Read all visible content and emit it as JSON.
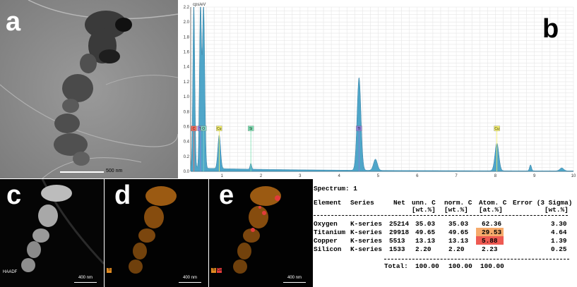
{
  "panels": {
    "a": {
      "label": "a",
      "scale_text": "500 nm"
    },
    "b": {
      "label": "b"
    },
    "c": {
      "label": "c",
      "scale_text": "400 nm",
      "tag": "HAADF"
    },
    "d": {
      "label": "d",
      "scale_text": "400 nm",
      "legend": [
        "Ti"
      ]
    },
    "e": {
      "label": "e",
      "scale_text": "400 nm",
      "legend": [
        "Ti",
        "Cu"
      ]
    }
  },
  "chart_data": {
    "type": "line",
    "ylabel": "cps/eV",
    "xlabel": "keV",
    "xlim": [
      0.2,
      10
    ],
    "ylim": [
      0,
      2.2
    ],
    "xticks": [
      1,
      2,
      3,
      4,
      5,
      6,
      7,
      8,
      9,
      10
    ],
    "yticks": [
      0.0,
      0.2,
      0.4,
      0.6,
      0.8,
      1.0,
      1.2,
      1.4,
      1.6,
      1.8,
      2.0,
      2.2
    ],
    "grid": true,
    "peaks": [
      {
        "x": 0.28,
        "y": 2.2
      },
      {
        "x": 0.45,
        "y": 2.2
      },
      {
        "x": 0.53,
        "y": 2.2
      },
      {
        "x": 0.93,
        "y": 0.45
      },
      {
        "x": 1.74,
        "y": 0.08
      },
      {
        "x": 4.51,
        "y": 1.24
      },
      {
        "x": 4.93,
        "y": 0.15
      },
      {
        "x": 8.04,
        "y": 0.37
      },
      {
        "x": 8.9,
        "y": 0.08
      },
      {
        "x": 9.7,
        "y": 0.04
      }
    ],
    "element_markers": [
      {
        "label": "C",
        "x": 0.28,
        "color": "#f26b5b"
      },
      {
        "label": "Ti",
        "x": 0.45,
        "color": "#8a7fd6"
      },
      {
        "label": "O",
        "x": 0.53,
        "color": "#7fd3c4"
      },
      {
        "label": "Cu",
        "x": 0.93,
        "color": "#f3ee6a"
      },
      {
        "label": "Si",
        "x": 1.74,
        "color": "#7fe0b3"
      },
      {
        "label": "Ti",
        "x": 4.51,
        "color": "#8a7fd6"
      },
      {
        "label": "Cu",
        "x": 8.04,
        "color": "#f3ee6a"
      }
    ]
  },
  "table": {
    "title": "Spectrum: 1",
    "header1": [
      "Element",
      "Series",
      "Net",
      "unn. C",
      "norm. C",
      "Atom. C",
      "Error (3 Sigma)"
    ],
    "header2": [
      "[wt.%]",
      "[wt.%]",
      "[at.%]",
      "[wt.%]"
    ],
    "rows": [
      {
        "element": "Oxygen",
        "series": "K-series",
        "net": "25214",
        "unn": "35.03",
        "norm": "35.03",
        "atom": "62.36",
        "error": "3.30",
        "hl": ""
      },
      {
        "element": "Titanium",
        "series": "K-series",
        "net": "29918",
        "unn": "49.65",
        "norm": "49.65",
        "atom": "29.53",
        "error": "4.64",
        "hl": "#f6ab6c"
      },
      {
        "element": "Copper",
        "series": "K-series",
        "net": "5513",
        "unn": "13.13",
        "norm": "13.13",
        "atom": "5.88",
        "error": "1.39",
        "hl": "#ee5a52"
      },
      {
        "element": "Silicon",
        "series": "K-series",
        "net": "1533",
        "unn": "2.20",
        "norm": "2.20",
        "atom": "2.23",
        "error": "0.25",
        "hl": ""
      }
    ],
    "total_label": "Total:",
    "totals": [
      "100.00",
      "100.00",
      "100.00"
    ]
  }
}
